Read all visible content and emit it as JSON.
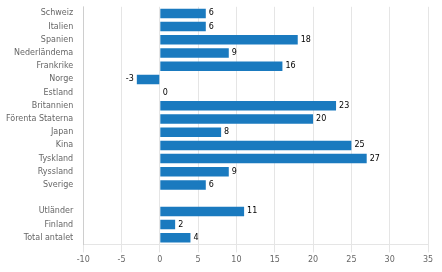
{
  "chart_data": {
    "type": "bar",
    "orientation": "horizontal",
    "categories": [
      "Schweiz",
      "Italien",
      "Spanien",
      "Nederländema",
      "Frankrike",
      "Norge",
      "Estland",
      "Britannien",
      "Förenta Staterna",
      "Japan",
      "Kina",
      "Tyskland",
      "Ryssland",
      "Sverige",
      null,
      "Utländer",
      "Finland",
      "Total antalet"
    ],
    "values": [
      6,
      6,
      18,
      9,
      16,
      -3,
      0,
      23,
      20,
      8,
      25,
      27,
      9,
      6,
      null,
      11,
      2,
      4
    ],
    "color": "#1a7abf",
    "xlim": [
      -10,
      35
    ],
    "xticks": [
      -10,
      -5,
      0,
      5,
      10,
      15,
      20,
      25,
      30,
      35
    ],
    "grid": true,
    "data_labels": true
  }
}
